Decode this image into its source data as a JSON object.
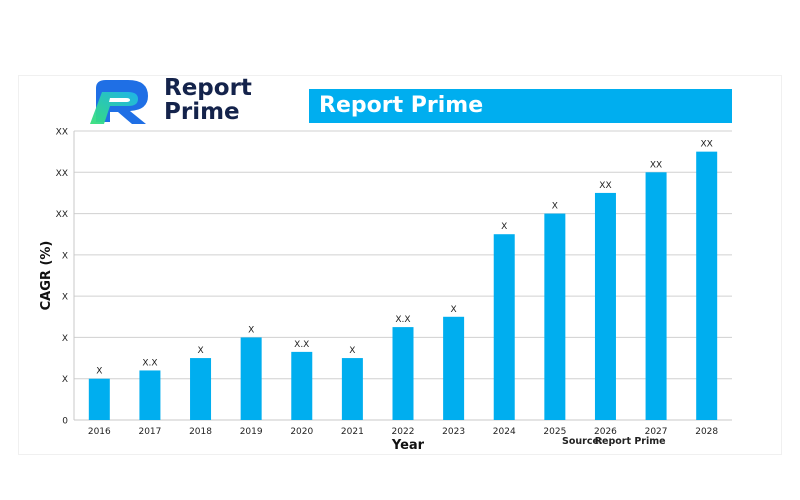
{
  "logo": {
    "line1": "Report",
    "line2": "Prime"
  },
  "banner": {
    "title": "Report Prime"
  },
  "source": {
    "label": "Source:",
    "value": "Report Prime"
  },
  "colors": {
    "bar": "#00aeef",
    "grid": "#d0d0d0",
    "logo_dark": "#14234b",
    "logo_green": "#37e07a",
    "logo_blue": "#1f6fe5"
  },
  "chart_data": {
    "type": "bar",
    "xlabel": "Year",
    "ylabel": "CAGR (%)",
    "categories": [
      "2016",
      "2017",
      "2018",
      "2019",
      "2020",
      "2021",
      "2022",
      "2023",
      "2024",
      "2025",
      "2026",
      "2027",
      "2028"
    ],
    "values": [
      1.0,
      1.2,
      1.5,
      2.0,
      1.65,
      1.5,
      2.25,
      2.5,
      4.5,
      5.0,
      5.5,
      6.0,
      6.5
    ],
    "data_labels": [
      "X",
      "X.X",
      "X",
      "X",
      "X.X",
      "X",
      "X.X",
      "X",
      "X",
      "X",
      "XX",
      "XX",
      "XX"
    ],
    "ytick_labels": [
      "0",
      "X",
      "X",
      "X",
      "X",
      "XX",
      "XX",
      "XX"
    ],
    "ylim": [
      0,
      7
    ],
    "grid": true
  }
}
